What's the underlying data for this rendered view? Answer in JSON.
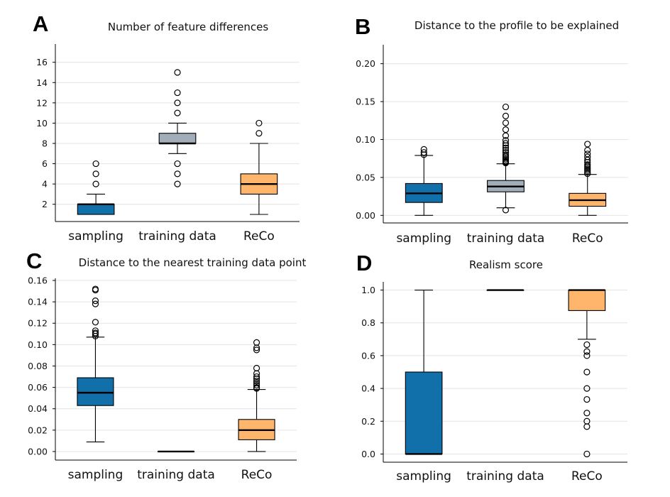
{
  "colors": {
    "sampling": "#1170aa",
    "training data": "#a3acb9",
    "ReCo": "#ffb56b",
    "grid": "#e4e4e4"
  },
  "chart_data": [
    {
      "letter": "A",
      "type": "box",
      "title": "Number of feature differences",
      "categories": [
        "sampling",
        "training data",
        "ReCo"
      ],
      "yticks": [
        2,
        4,
        6,
        8,
        10,
        12,
        14,
        16
      ],
      "ylim": [
        0.3,
        17.8
      ],
      "grid": true,
      "boxes": [
        {
          "whislo": 1,
          "q1": 1,
          "med": 2,
          "q3": 2,
          "whishi": 3,
          "fliers": [
            4,
            5,
            6
          ]
        },
        {
          "whislo": 7,
          "q1": 8,
          "med": 8,
          "q3": 9,
          "whishi": 10,
          "fliers": [
            4,
            5,
            6,
            11,
            12,
            13,
            15
          ]
        },
        {
          "whislo": 1,
          "q1": 3,
          "med": 4,
          "q3": 5,
          "whishi": 8,
          "fliers": [
            9,
            10
          ]
        }
      ]
    },
    {
      "letter": "B",
      "type": "box",
      "title": "Distance to the profile to be explained",
      "categories": [
        "sampling",
        "training data",
        "ReCo"
      ],
      "yticks": [
        "0.00",
        "0.05",
        "0.10",
        "0.15",
        "0.20"
      ],
      "ylim": [
        -0.01,
        0.225
      ],
      "grid": true,
      "boxes": [
        {
          "whislo": 0.0,
          "q1": 0.017,
          "med": 0.029,
          "q3": 0.042,
          "whishi": 0.079,
          "fliers": [
            0.08,
            0.083,
            0.087
          ]
        },
        {
          "whislo": 0.01,
          "q1": 0.031,
          "med": 0.038,
          "q3": 0.046,
          "whishi": 0.068,
          "fliers": [
            0.007,
            0.069,
            0.07,
            0.071,
            0.072,
            0.074,
            0.076,
            0.078,
            0.08,
            0.083,
            0.086,
            0.089,
            0.092,
            0.095,
            0.099,
            0.105,
            0.113,
            0.122,
            0.131,
            0.143
          ]
        },
        {
          "whislo": 0.0,
          "q1": 0.012,
          "med": 0.02,
          "q3": 0.029,
          "whishi": 0.054,
          "fliers": [
            0.055,
            0.057,
            0.059,
            0.061,
            0.063,
            0.065,
            0.067,
            0.07,
            0.073,
            0.077,
            0.081,
            0.086,
            0.094
          ]
        }
      ]
    },
    {
      "letter": "C",
      "type": "box",
      "title": "Distance to the nearest training data point",
      "categories": [
        "sampling",
        "training data",
        "ReCo"
      ],
      "yticks": [
        "0.00",
        "0.02",
        "0.04",
        "0.06",
        "0.08",
        "0.10",
        "0.12",
        "0.14",
        "0.16"
      ],
      "ylim": [
        -0.008,
        0.162
      ],
      "grid": true,
      "boxes": [
        {
          "whislo": 0.009,
          "q1": 0.043,
          "med": 0.055,
          "q3": 0.069,
          "whishi": 0.107,
          "fliers": [
            0.108,
            0.11,
            0.111,
            0.113,
            0.121,
            0.138,
            0.141,
            0.151,
            0.152
          ]
        },
        {
          "whislo": 0.0,
          "q1": 0.0,
          "med": 0.0,
          "q3": 0.0,
          "whishi": 0.0,
          "fliers": []
        },
        {
          "whislo": 0.0,
          "q1": 0.011,
          "med": 0.02,
          "q3": 0.03,
          "whishi": 0.058,
          "fliers": [
            0.059,
            0.06,
            0.062,
            0.064,
            0.066,
            0.068,
            0.07,
            0.073,
            0.078,
            0.095,
            0.097,
            0.102
          ]
        }
      ]
    },
    {
      "letter": "D",
      "type": "box",
      "title": "Realism score",
      "categories": [
        "sampling",
        "training data",
        "ReCo"
      ],
      "yticks": [
        "0.0",
        "0.2",
        "0.4",
        "0.6",
        "0.8",
        "1.0"
      ],
      "ylim": [
        -0.05,
        1.05
      ],
      "grid": true,
      "boxes": [
        {
          "whislo": 0.0,
          "q1": 0.0,
          "med": 0.0,
          "q3": 0.5,
          "whishi": 1.0,
          "fliers": []
        },
        {
          "whislo": 1.0,
          "q1": 1.0,
          "med": 1.0,
          "q3": 1.0,
          "whishi": 1.0,
          "fliers": []
        },
        {
          "whislo": 0.7,
          "q1": 0.875,
          "med": 1.0,
          "q3": 1.0,
          "whishi": 1.0,
          "fliers": [
            0.0,
            0.167,
            0.2,
            0.25,
            0.333,
            0.4,
            0.5,
            0.6,
            0.625,
            0.667
          ]
        }
      ]
    }
  ]
}
